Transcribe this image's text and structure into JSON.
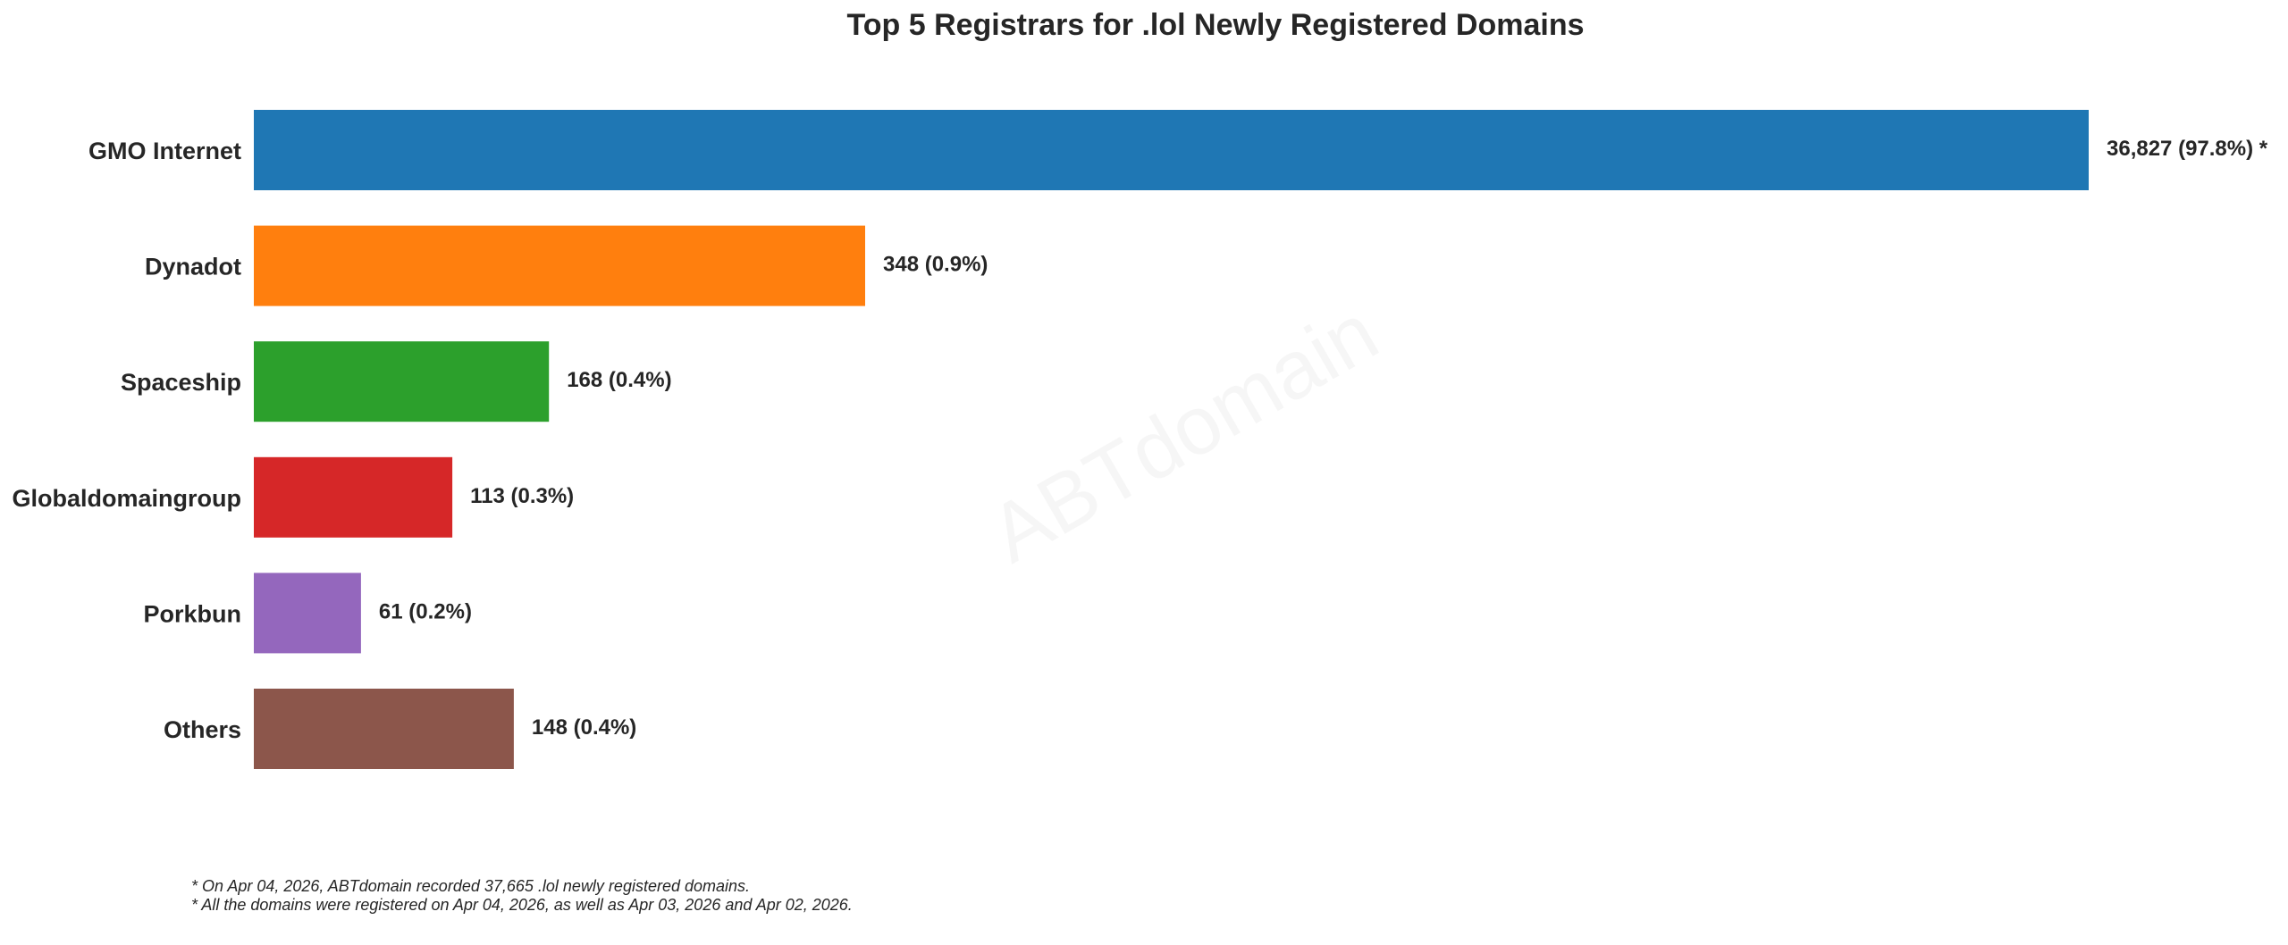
{
  "chart_data": {
    "type": "bar",
    "orientation": "horizontal",
    "title": "Top 5 Registrars for .lol Newly Registered Domains",
    "categories": [
      "GMO Internet",
      "Dynadot",
      "Spaceship",
      "Globaldomaingroup",
      "Porkbun",
      "Others"
    ],
    "values": [
      36827,
      348,
      168,
      113,
      61,
      148
    ],
    "labels": [
      "36,827 (97.8%) *",
      "348 (0.9%)",
      "168 (0.4%)",
      "113 (0.3%)",
      "61 (0.2%)",
      "148 (0.4%)"
    ],
    "colors": [
      "#1f77b4",
      "#ff7f0e",
      "#2ca02c",
      "#d62728",
      "#9467bd",
      "#8c564b"
    ],
    "scale": "broken-axis: first bar truncated, remaining bars scaled linearly",
    "small_scale_max": 348,
    "grid": false,
    "legend": "none",
    "xlabel": "",
    "ylabel": ""
  },
  "watermark": "ABTdomain",
  "footnotes": [
    "* On Apr 04, 2026, ABTdomain recorded 37,665 .lol newly registered domains.",
    "* All the domains were registered on Apr 04, 2026, as well as Apr 03, 2026 and Apr 02, 2026."
  ]
}
